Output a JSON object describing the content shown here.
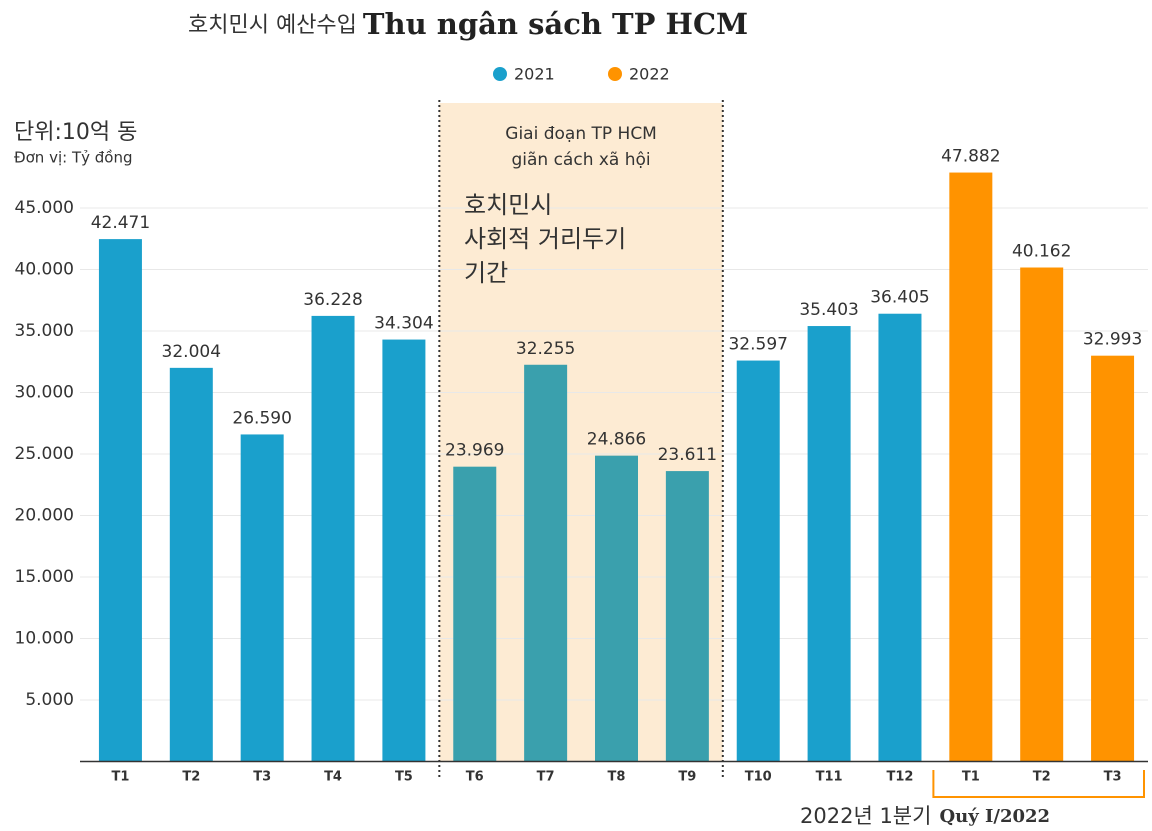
{
  "chart_data": {
    "type": "bar",
    "title_ko": "호치민시 예산수입",
    "title": "Thu ngân sách TP HCM",
    "unit_ko": "단위:10억 동",
    "unit": "Đơn vị: Tỷ đồng",
    "categories": [
      "T1",
      "T2",
      "T3",
      "T4",
      "T5",
      "T6",
      "T7",
      "T8",
      "T9",
      "T10",
      "T11",
      "T12",
      "T1",
      "T2",
      "T3"
    ],
    "series": [
      {
        "name": "2021",
        "color": "#1aa0cc",
        "values": [
          42471,
          32004,
          26590,
          36228,
          34304,
          23969,
          32255,
          24866,
          23611,
          32597,
          35403,
          36405,
          null,
          null,
          null
        ],
        "value_labels": [
          "42.471",
          "32.004",
          "26.590",
          "36.228",
          "34.304",
          "23.969",
          "32.255",
          "24.866",
          "23.611",
          "32.597",
          "35.403",
          "36.405",
          null,
          null,
          null
        ]
      },
      {
        "name": "2022",
        "color": "#ff9300",
        "values": [
          null,
          null,
          null,
          null,
          null,
          null,
          null,
          null,
          null,
          null,
          null,
          null,
          47882,
          40162,
          32993
        ],
        "value_labels": [
          null,
          null,
          null,
          null,
          null,
          null,
          null,
          null,
          null,
          null,
          null,
          null,
          "47.882",
          "40.162",
          "32.993"
        ]
      }
    ],
    "ylim": [
      0,
      50000
    ],
    "yticks": [
      {
        "value": 5000,
        "label": "5.000"
      },
      {
        "value": 10000,
        "label": "10.000"
      },
      {
        "value": 15000,
        "label": "15.000"
      },
      {
        "value": 20000,
        "label": "20.000"
      },
      {
        "value": 25000,
        "label": "25.000"
      },
      {
        "value": 30000,
        "label": "30.000"
      },
      {
        "value": 35000,
        "label": "35.000"
      },
      {
        "value": 40000,
        "label": "40.000"
      },
      {
        "value": 45000,
        "label": "45.000"
      }
    ],
    "grid": true,
    "legend": "top",
    "highlight": {
      "range": [
        5,
        8
      ],
      "fill": "#fdebd3",
      "bar_color": "#3aa0ad",
      "text": [
        "Giai đoạn TP HCM",
        "giãn cách xã hội"
      ],
      "text_ko": [
        "호치민시",
        "사회적 거리두기",
        "기간"
      ]
    },
    "period": {
      "range": [
        12,
        14
      ],
      "color": "#ff9300",
      "text_ko": "2022년 1분기",
      "text": "Quý I/2022"
    }
  }
}
